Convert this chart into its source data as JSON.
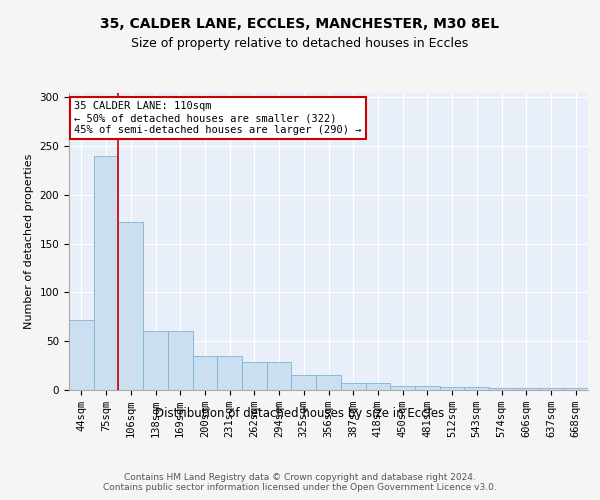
{
  "title1": "35, CALDER LANE, ECCLES, MANCHESTER, M30 8EL",
  "title2": "Size of property relative to detached houses in Eccles",
  "xlabel": "Distribution of detached houses by size in Eccles",
  "ylabel": "Number of detached properties",
  "footer": "Contains HM Land Registry data © Crown copyright and database right 2024.\nContains public sector information licensed under the Open Government Licence v3.0.",
  "bin_labels": [
    "44sqm",
    "75sqm",
    "106sqm",
    "138sqm",
    "169sqm",
    "200sqm",
    "231sqm",
    "262sqm",
    "294sqm",
    "325sqm",
    "356sqm",
    "387sqm",
    "418sqm",
    "450sqm",
    "481sqm",
    "512sqm",
    "543sqm",
    "574sqm",
    "606sqm",
    "637sqm",
    "668sqm"
  ],
  "bar_heights": [
    72,
    240,
    172,
    61,
    61,
    35,
    35,
    29,
    29,
    15,
    15,
    7,
    7,
    4,
    4,
    3,
    3,
    2,
    2,
    2,
    2
  ],
  "bar_color": "#ccdff0",
  "bar_edge_color": "#7db3d8",
  "background_color": "#e8eff8",
  "grid_color": "#ffffff",
  "red_line_x": 1.5,
  "red_line_color": "#cc0000",
  "annotation_text": "35 CALDER LANE: 110sqm\n← 50% of detached houses are smaller (322)\n45% of semi-detached houses are larger (290) →",
  "annotation_box_color": "#ffffff",
  "annotation_box_edge_color": "#cc0000",
  "ylim": [
    0,
    305
  ],
  "yticks": [
    0,
    50,
    100,
    150,
    200,
    250,
    300
  ],
  "title1_fontsize": 10,
  "title2_fontsize": 9,
  "xlabel_fontsize": 8.5,
  "ylabel_fontsize": 8,
  "tick_fontsize": 7.5,
  "footer_fontsize": 6.5,
  "ann_fontsize": 7.5
}
